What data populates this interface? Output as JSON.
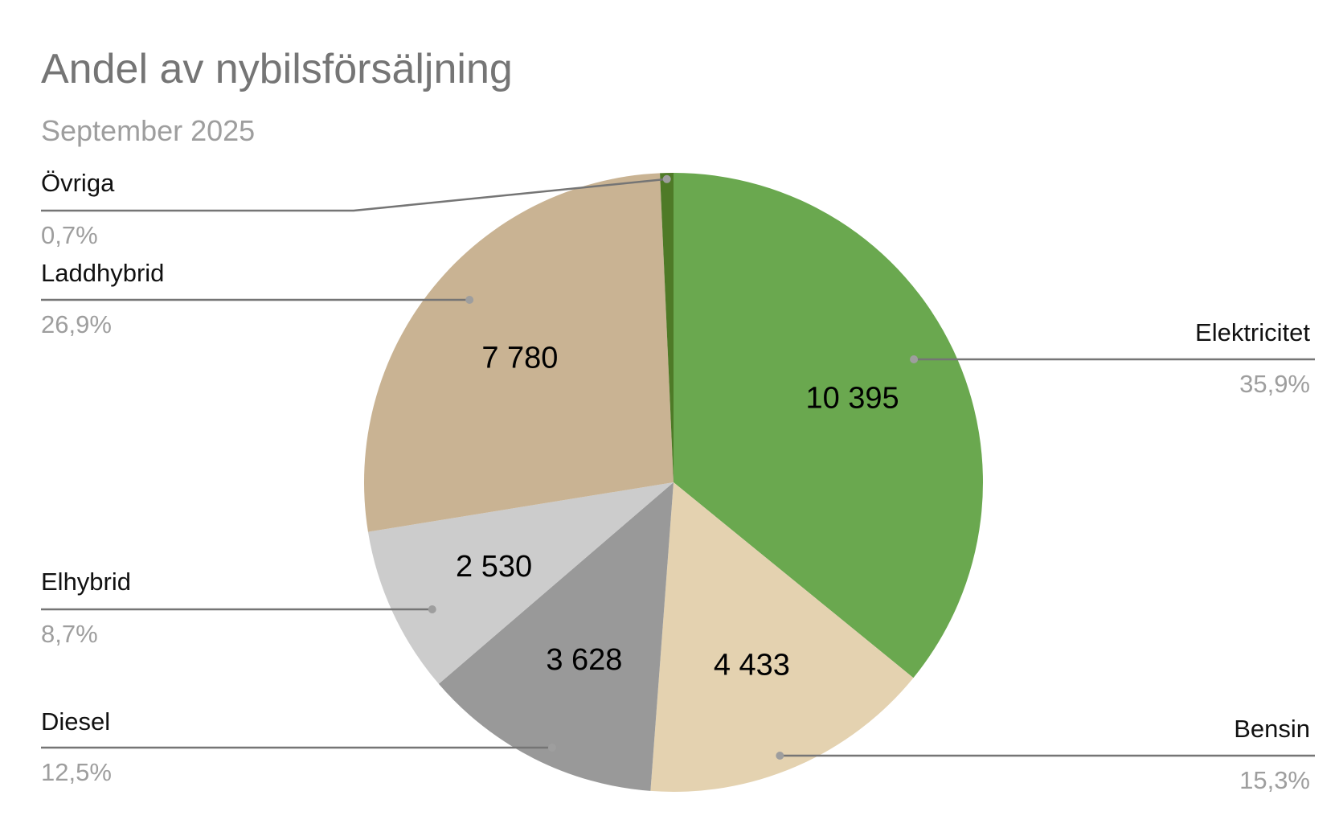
{
  "chart_data": {
    "type": "pie",
    "title": "Andel av nybilsförsäljning",
    "subtitle": "September 2025",
    "slices": [
      {
        "name": "Elektricitet",
        "value": 10395,
        "value_label": "10 395",
        "percent_label": "35,9%",
        "color": "#6aa84f"
      },
      {
        "name": "Bensin",
        "value": 4433,
        "value_label": "4 433",
        "percent_label": "15,3%",
        "color": "#e4d2b0"
      },
      {
        "name": "Diesel",
        "value": 3628,
        "value_label": "3 628",
        "percent_label": "12,5%",
        "color": "#999999"
      },
      {
        "name": "Elhybrid",
        "value": 2530,
        "value_label": "2 530",
        "percent_label": "8,7%",
        "color": "#cccccc"
      },
      {
        "name": "Laddhybrid",
        "value": 7780,
        "value_label": "7 780",
        "percent_label": "26,9%",
        "color": "#c9b393"
      },
      {
        "name": "Övriga",
        "value": 203,
        "value_label": "",
        "percent_label": "0,7%",
        "color": "#4e7a27"
      }
    ]
  }
}
